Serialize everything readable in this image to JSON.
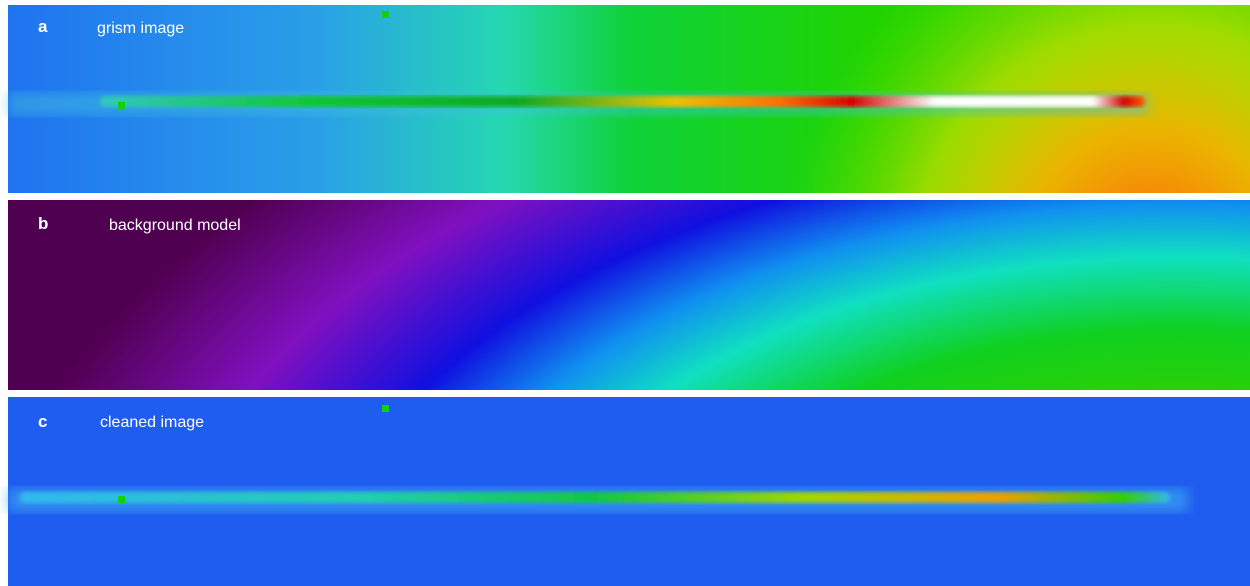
{
  "panels": [
    {
      "letter": "a",
      "label": "grism image"
    },
    {
      "letter": "b",
      "label": "background model"
    },
    {
      "letter": "c",
      "label": "cleaned image"
    }
  ]
}
